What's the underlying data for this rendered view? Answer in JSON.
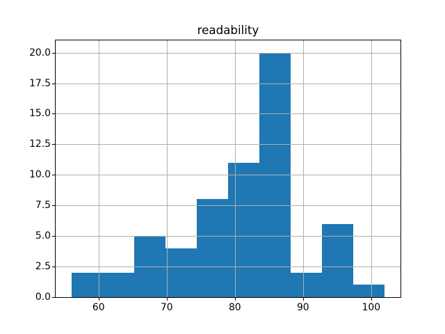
{
  "chart_data": {
    "type": "bar",
    "subtype": "histogram",
    "title": "readability",
    "xlabel": "",
    "ylabel": "",
    "bin_edges": [
      56.0,
      60.6,
      65.2,
      69.8,
      74.4,
      79.0,
      83.6,
      88.2,
      92.8,
      97.4,
      102.0
    ],
    "counts": [
      2,
      2,
      5,
      4,
      8,
      11,
      20,
      2,
      6,
      1
    ],
    "xlim": [
      53.7,
      104.3
    ],
    "ylim": [
      0,
      21
    ],
    "xticks": [
      60,
      70,
      80,
      90,
      100
    ],
    "xtick_labels": [
      "60",
      "70",
      "80",
      "90",
      "100"
    ],
    "yticks": [
      0.0,
      2.5,
      5.0,
      7.5,
      10.0,
      12.5,
      15.0,
      17.5,
      20.0
    ],
    "ytick_labels": [
      "0.0",
      "2.5",
      "5.0",
      "7.5",
      "10.0",
      "12.5",
      "15.0",
      "17.5",
      "20.0"
    ],
    "grid": true,
    "grid_over_bars": true,
    "legend": "none",
    "colors": {
      "bar": "#1f77b4",
      "grid": "#b0b0b0",
      "spine": "#000000",
      "text": "#000000",
      "background": "#ffffff"
    }
  }
}
